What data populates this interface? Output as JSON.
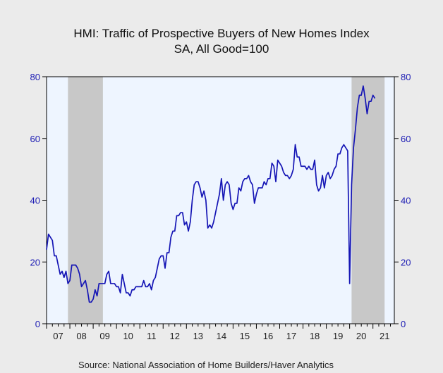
{
  "chart_data": {
    "type": "line",
    "title": "HMI: Traffic of Prospective Buyers of New Homes Index",
    "subtitle": "SA, All Good=100",
    "source": "Source:  National Association of Home Builders/Haver Analytics",
    "xlabel": "",
    "ylabel": "",
    "xlim": [
      2007.0,
      2021.917
    ],
    "ylim": [
      0,
      80
    ],
    "y_ticks": [
      0,
      20,
      40,
      60,
      80
    ],
    "x_tick_labels": [
      "07",
      "08",
      "09",
      "10",
      "11",
      "12",
      "13",
      "14",
      "15",
      "16",
      "17",
      "18",
      "19",
      "20",
      "21"
    ],
    "grid": false,
    "legend": "none",
    "recessions": [
      [
        2007.917,
        2009.417
      ],
      [
        2020.083,
        2021.5
      ]
    ],
    "colors": {
      "line": "#1515b5",
      "plot_bg": "#eef5ff",
      "recession": "#c8c8c8",
      "page_bg": "#ebebeb",
      "axis_tick_text": "#1c1cb4"
    },
    "series": [
      {
        "values": [
          24,
          29,
          28,
          27,
          22,
          22,
          19,
          16,
          17,
          15,
          17,
          13,
          14,
          19,
          19,
          19,
          18,
          16,
          12,
          13,
          14,
          11,
          7,
          7,
          8,
          11,
          9,
          13,
          13,
          13,
          13,
          16,
          17,
          13,
          13,
          13,
          12,
          12,
          10,
          16,
          13,
          10,
          10,
          9,
          11,
          11,
          12,
          12,
          12,
          12,
          14,
          12,
          12,
          13,
          11,
          14,
          15,
          18,
          21,
          22,
          22,
          18,
          23,
          23,
          28,
          30,
          30,
          35,
          35,
          36,
          36,
          32,
          33,
          30,
          33,
          40,
          45,
          46,
          46,
          44,
          41,
          43,
          40,
          31,
          32,
          31,
          33,
          36,
          39,
          42,
          47,
          40,
          45,
          46,
          45,
          39,
          37,
          39,
          39,
          44,
          43,
          46,
          47,
          47,
          48,
          46,
          45,
          39,
          42,
          44,
          44,
          44,
          46,
          45,
          47,
          47,
          52,
          51,
          46,
          53,
          52,
          51,
          49,
          48,
          48,
          47,
          48,
          50,
          58,
          54,
          54,
          51,
          51,
          51,
          50,
          51,
          50,
          50,
          53,
          45,
          43,
          44,
          48,
          44,
          48,
          49,
          47,
          48,
          50,
          51,
          55,
          55,
          57,
          58,
          57,
          56,
          13,
          45,
          57,
          63,
          70,
          74,
          74,
          77,
          73,
          68,
          72,
          72,
          74,
          73
        ]
      }
    ]
  }
}
